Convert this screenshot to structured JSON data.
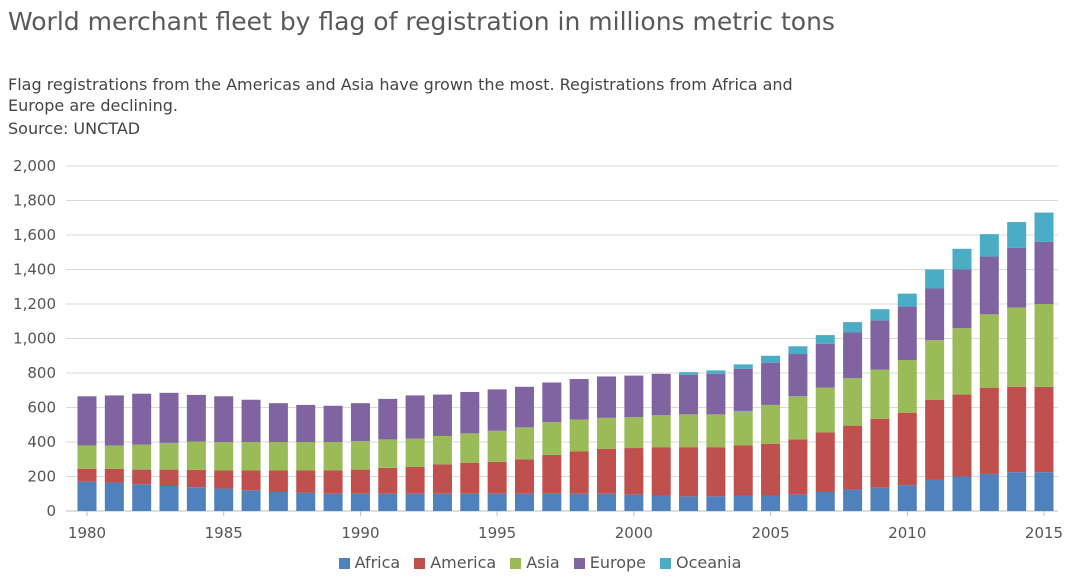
{
  "chart_data": {
    "type": "bar",
    "stacked": true,
    "title": "World merchant fleet by flag of registration in millions metric tons",
    "subtitle": "Flag registrations from the Americas and Asia have grown the most. Registrations from Africa and Europe are declining.",
    "source": "Source: UNCTAD",
    "xlabel": "",
    "ylabel": "",
    "ylim": [
      0,
      2000
    ],
    "yticks": [
      0,
      200,
      400,
      600,
      800,
      1000,
      1200,
      1400,
      1600,
      1800,
      2000
    ],
    "ytick_labels": [
      "0",
      "200",
      "400",
      "600",
      "800",
      "1,000",
      "1,200",
      "1,400",
      "1,600",
      "1,800",
      "2,000"
    ],
    "xtick_labels": [
      "1980",
      "1985",
      "1990",
      "1995",
      "2000",
      "2005",
      "2010",
      "2015"
    ],
    "grid": true,
    "legend_position": "bottom",
    "categories": [
      "1980",
      "1981",
      "1982",
      "1983",
      "1984",
      "1985",
      "1986",
      "1987",
      "1988",
      "1989",
      "1990",
      "1991",
      "1992",
      "1993",
      "1994",
      "1995",
      "1996",
      "1997",
      "1998",
      "1999",
      "2000",
      "2001",
      "2002",
      "2003",
      "2004",
      "2005",
      "2006",
      "2007",
      "2008",
      "2009",
      "2010",
      "2011",
      "2012",
      "2013",
      "2014",
      "2015"
    ],
    "series": [
      {
        "name": "Africa",
        "color": "#4f81bd",
        "values": [
          170,
          165,
          155,
          145,
          138,
          130,
          120,
          110,
          105,
          100,
          100,
          100,
          100,
          100,
          100,
          100,
          100,
          100,
          100,
          100,
          95,
          90,
          85,
          85,
          90,
          90,
          95,
          110,
          125,
          135,
          150,
          180,
          200,
          215,
          225,
          225
        ]
      },
      {
        "name": "America",
        "color": "#c0504d",
        "values": [
          75,
          80,
          85,
          95,
          100,
          105,
          115,
          125,
          130,
          135,
          140,
          150,
          155,
          170,
          180,
          185,
          200,
          225,
          245,
          260,
          270,
          280,
          285,
          285,
          290,
          300,
          320,
          345,
          370,
          400,
          420,
          465,
          475,
          500,
          495,
          495
        ]
      },
      {
        "name": "Asia",
        "color": "#9bbb59",
        "values": [
          135,
          135,
          145,
          155,
          165,
          165,
          165,
          165,
          165,
          165,
          165,
          165,
          165,
          165,
          170,
          180,
          185,
          190,
          185,
          180,
          180,
          185,
          190,
          190,
          200,
          225,
          250,
          260,
          275,
          285,
          305,
          345,
          385,
          425,
          460,
          480
        ]
      },
      {
        "name": "Europe",
        "color": "#8064a2",
        "values": [
          285,
          290,
          295,
          290,
          270,
          265,
          245,
          225,
          215,
          210,
          220,
          235,
          250,
          240,
          240,
          240,
          235,
          230,
          235,
          240,
          240,
          240,
          230,
          235,
          245,
          245,
          245,
          255,
          265,
          285,
          310,
          300,
          340,
          335,
          345,
          360
        ]
      },
      {
        "name": "Oceania",
        "color": "#4bacc6",
        "values": [
          0,
          0,
          0,
          0,
          0,
          0,
          0,
          0,
          0,
          0,
          0,
          0,
          0,
          0,
          0,
          0,
          0,
          0,
          0,
          0,
          0,
          0,
          15,
          20,
          25,
          40,
          45,
          50,
          60,
          65,
          75,
          110,
          120,
          130,
          150,
          170
        ]
      }
    ]
  }
}
